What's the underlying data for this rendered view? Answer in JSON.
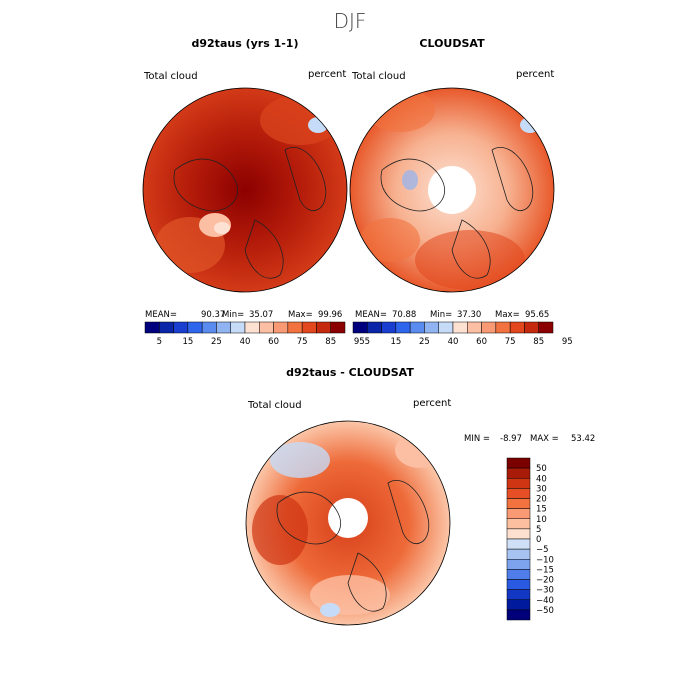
{
  "title": "DJF",
  "colors": {
    "seq": [
      "#00007f",
      "#0a25a8",
      "#1a3fd0",
      "#2f66ee",
      "#5a8cf0",
      "#90b4f2",
      "#c6dbf7",
      "#fde2d4",
      "#fcbfa3",
      "#f99a74",
      "#f2733f",
      "#e2471e",
      "#c52a0f",
      "#8b0000"
    ],
    "div_pos": [
      "#fde0cf",
      "#fcc0a1",
      "#f99a74",
      "#f2733f",
      "#e64f25",
      "#cf3512",
      "#a81b08",
      "#7a0000"
    ],
    "div_neg": [
      "#cfe0f7",
      "#a7c3f1",
      "#7da3ee",
      "#4f7eeb",
      "#2a5ae2",
      "#1237c4",
      "#001a9e",
      "#00007a"
    ]
  },
  "chart_data": [
    {
      "type": "heatmap",
      "panel": "left",
      "title": "d92taus (yrs 1-1)",
      "field_label": "Total cloud",
      "units": "percent",
      "stats": {
        "mean_label": "MEAN=",
        "mean": "90.37",
        "min_label": "Min=",
        "min": "35.07",
        "max_label": "Max=",
        "max": "99.96"
      },
      "colorbar_ticks": [
        "5",
        "15",
        "25",
        "40",
        "60",
        "75",
        "85",
        "95"
      ]
    },
    {
      "type": "heatmap",
      "panel": "right",
      "title": "CLOUDSAT",
      "field_label": "Total cloud",
      "units": "percent",
      "stats": {
        "mean_label": "MEAN=",
        "mean": "70.88",
        "min_label": "Min=",
        "min": "37.30",
        "max_label": "Max=",
        "max": "95.65"
      },
      "colorbar_ticks": [
        "5",
        "15",
        "25",
        "40",
        "60",
        "75",
        "85",
        "95"
      ]
    },
    {
      "type": "heatmap",
      "panel": "difference",
      "title": "d92taus - CLOUDSAT",
      "field_label": "Total cloud",
      "units": "percent",
      "min_label": "MIN =",
      "min": "-8.97",
      "max_label": "MAX =",
      "max": "53.42",
      "colorbar_ticks": [
        "50",
        "40",
        "30",
        "20",
        "15",
        "10",
        "5",
        "0",
        "−5",
        "−10",
        "−15",
        "−20",
        "−30",
        "−40",
        "−50"
      ]
    }
  ]
}
